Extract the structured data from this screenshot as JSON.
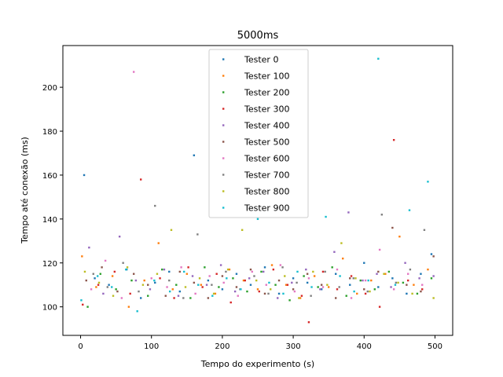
{
  "chart_data": {
    "type": "scatter",
    "title": "5000ms",
    "xlabel": "Tempo do experimento (s)",
    "ylabel": "Tempo até conexão (ms)",
    "xlim": [
      -25,
      525
    ],
    "ylim": [
      87,
      219
    ],
    "xticks": [
      0,
      100,
      200,
      300,
      400,
      500
    ],
    "yticks": [
      100,
      120,
      140,
      160,
      180,
      200
    ],
    "grid": false,
    "legend_position": "top-center",
    "series": [
      {
        "name": "Tester 0",
        "color": "#1f77b4",
        "x": [
          5,
          20,
          40,
          65,
          85,
          105,
          125,
          140,
          160,
          180,
          200,
          220,
          240,
          260,
          280,
          300,
          320,
          340,
          360,
          380,
          400,
          420,
          440,
          460,
          480,
          495
        ],
        "y": [
          160,
          113,
          110,
          117,
          104,
          111,
          116,
          107,
          169,
          112,
          108,
          115,
          110,
          118,
          106,
          113,
          111,
          108,
          115,
          110,
          120,
          109,
          113,
          106,
          115,
          124
        ]
      },
      {
        "name": "Tester 100",
        "color": "#ff7f0e",
        "x": [
          2,
          22,
          45,
          68,
          90,
          110,
          130,
          150,
          170,
          190,
          210,
          230,
          250,
          270,
          290,
          310,
          330,
          350,
          370,
          390,
          410,
          430,
          450,
          470,
          490
        ],
        "y": [
          123,
          109,
          114,
          100,
          112,
          129,
          108,
          115,
          110,
          106,
          117,
          112,
          108,
          119,
          110,
          104,
          114,
          109,
          122,
          106,
          112,
          115,
          132,
          110,
          117
        ]
      },
      {
        "name": "Tester 200",
        "color": "#2ca02c",
        "x": [
          10,
          28,
          50,
          72,
          95,
          115,
          135,
          155,
          175,
          195,
          215,
          235,
          255,
          275,
          295,
          315,
          335,
          355,
          375,
          395,
          415,
          435,
          455,
          475,
          495
        ],
        "y": [
          100,
          115,
          108,
          112,
          105,
          117,
          110,
          104,
          118,
          109,
          113,
          107,
          116,
          110,
          103,
          114,
          109,
          118,
          105,
          112,
          108,
          116,
          111,
          106,
          113
        ]
      },
      {
        "name": "Tester 300",
        "color": "#d62728",
        "x": [
          3,
          25,
          48,
          70,
          85,
          112,
          132,
          152,
          172,
          192,
          212,
          232,
          252,
          272,
          292,
          312,
          322,
          342,
          362,
          382,
          402,
          422,
          442,
          462,
          482
        ],
        "y": [
          101,
          110,
          116,
          106,
          158,
          113,
          104,
          118,
          109,
          115,
          102,
          112,
          107,
          117,
          110,
          105,
          93,
          116,
          108,
          114,
          106,
          100,
          176,
          112,
          108
        ]
      },
      {
        "name": "Tester 400",
        "color": "#9467bd",
        "x": [
          12,
          32,
          55,
          78,
          98,
          118,
          138,
          158,
          178,
          198,
          218,
          238,
          258,
          278,
          298,
          318,
          338,
          358,
          378,
          398,
          418,
          438,
          458,
          478,
          498
        ],
        "y": [
          127,
          106,
          132,
          112,
          108,
          117,
          105,
          114,
          110,
          119,
          107,
          113,
          116,
          104,
          111,
          117,
          108,
          125,
          143,
          112,
          115,
          109,
          120,
          113,
          114
        ]
      },
      {
        "name": "Tester 500",
        "color": "#8c564b",
        "x": [
          8,
          30,
          52,
          75,
          95,
          120,
          140,
          160,
          180,
          200,
          220,
          240,
          260,
          280,
          300,
          320,
          340,
          360,
          380,
          400,
          420,
          440,
          460,
          480,
          498
        ],
        "y": [
          112,
          118,
          107,
          115,
          110,
          105,
          116,
          111,
          104,
          114,
          109,
          117,
          106,
          112,
          108,
          115,
          110,
          104,
          113,
          108,
          116,
          136,
          110,
          107,
          123
        ]
      },
      {
        "name": "Tester 600",
        "color": "#e377c2",
        "x": [
          15,
          35,
          58,
          75,
          100,
          122,
          142,
          162,
          182,
          202,
          222,
          242,
          262,
          282,
          302,
          322,
          342,
          362,
          382,
          402,
          422,
          442,
          462,
          482
        ],
        "y": [
          108,
          121,
          104,
          207,
          113,
          109,
          118,
          106,
          114,
          111,
          105,
          116,
          110,
          119,
          107,
          113,
          109,
          117,
          104,
          112,
          126,
          108,
          115,
          110
        ]
      },
      {
        "name": "Tester 700",
        "color": "#7f7f7f",
        "x": [
          18,
          38,
          60,
          82,
          105,
          125,
          145,
          165,
          185,
          205,
          225,
          245,
          265,
          285,
          305,
          325,
          345,
          365,
          385,
          405,
          425,
          445,
          465,
          485
        ],
        "y": [
          115,
          109,
          120,
          107,
          146,
          112,
          104,
          133,
          110,
          116,
          108,
          114,
          106,
          118,
          111,
          105,
          116,
          109,
          113,
          107,
          142,
          111,
          117,
          135
        ]
      },
      {
        "name": "Tester 800",
        "color": "#bcbd22",
        "x": [
          6,
          26,
          46,
          66,
          88,
          108,
          128,
          148,
          168,
          188,
          208,
          228,
          248,
          268,
          288,
          308,
          328,
          348,
          368,
          388,
          408,
          428,
          448,
          468,
          498
        ],
        "y": [
          116,
          111,
          105,
          118,
          110,
          115,
          135,
          109,
          113,
          106,
          117,
          135,
          112,
          108,
          114,
          104,
          116,
          110,
          129,
          113,
          107,
          115,
          111,
          106,
          104
        ]
      },
      {
        "name": "Tester 900",
        "color": "#17becf",
        "x": [
          1,
          24,
          44,
          64,
          80,
          104,
          126,
          146,
          166,
          186,
          206,
          226,
          250,
          266,
          286,
          306,
          326,
          346,
          366,
          386,
          406,
          420,
          444,
          464,
          490
        ],
        "y": [
          103,
          114,
          109,
          117,
          98,
          112,
          107,
          116,
          110,
          105,
          113,
          108,
          140,
          111,
          106,
          116,
          109,
          141,
          114,
          107,
          112,
          213,
          110,
          144,
          157
        ]
      }
    ]
  }
}
